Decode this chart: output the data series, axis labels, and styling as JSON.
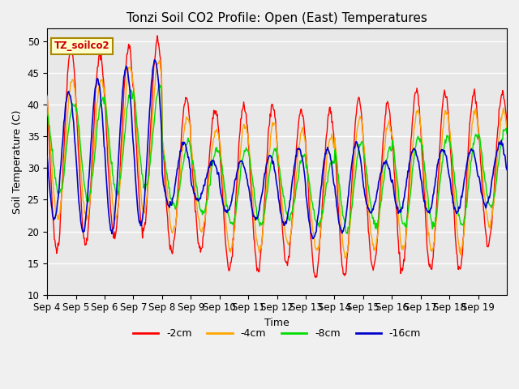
{
  "title": "Tonzi Soil CO2 Profile: Open (East) Temperatures",
  "xlabel": "Time",
  "ylabel": "Soil Temperature (C)",
  "ylim": [
    10,
    52
  ],
  "background_color": "#e8e8e8",
  "legend_label": "TZ_soilco2",
  "series": {
    "-2cm": {
      "color": "#ff0000",
      "label": "-2cm"
    },
    "-4cm": {
      "color": "#ffa500",
      "label": "-4cm"
    },
    "-8cm": {
      "color": "#00dd00",
      "label": "-8cm"
    },
    "-16cm": {
      "color": "#0000cc",
      "label": "-16cm"
    }
  },
  "x_tick_labels": [
    "Sep 4",
    "Sep 5",
    "Sep 6",
    "Sep 7",
    "Sep 8",
    "Sep 9",
    "Sep 10",
    "Sep 11",
    "Sep 12",
    "Sep 13",
    "Sep 14",
    "Sep 15",
    "Sep 16",
    "Sep 17",
    "Sep 18",
    "Sep 19"
  ],
  "yticks": [
    10,
    15,
    20,
    25,
    30,
    35,
    40,
    45,
    50
  ],
  "n_days": 16,
  "pts_per_day": 48,
  "daily_mean_2cm": [
    33,
    33,
    34,
    35,
    29,
    28,
    27,
    27,
    27,
    26,
    27,
    27,
    28,
    28,
    28,
    30
  ],
  "daily_amp_2cm": [
    16,
    15,
    15,
    15,
    12,
    11,
    13,
    13,
    12,
    13,
    14,
    13,
    14,
    14,
    14,
    12
  ],
  "daily_mean_4cm": [
    33,
    33,
    34,
    35,
    29,
    28,
    27,
    27,
    27,
    26,
    27,
    27,
    28,
    28,
    28,
    30
  ],
  "daily_amp_4cm": [
    11,
    11,
    12,
    12,
    9,
    8,
    10,
    10,
    9,
    9,
    11,
    10,
    11,
    11,
    11,
    9
  ],
  "daily_mean_8cm": [
    33,
    33,
    34,
    35,
    29,
    28,
    27,
    27,
    27,
    26,
    27,
    27,
    28,
    28,
    28,
    30
  ],
  "daily_amp_8cm": [
    7,
    8,
    8,
    8,
    5,
    5,
    6,
    6,
    5,
    5,
    7,
    6,
    7,
    7,
    7,
    6
  ],
  "daily_mean_16cm": [
    32,
    32,
    33,
    34,
    29,
    28,
    27,
    27,
    27,
    26,
    27,
    27,
    28,
    28,
    28,
    29
  ],
  "daily_amp_16cm": [
    10,
    12,
    13,
    13,
    5,
    3,
    4,
    5,
    6,
    7,
    7,
    4,
    5,
    5,
    5,
    5
  ],
  "phase_2cm": 14,
  "phase_4cm": 15,
  "phase_8cm": 16,
  "phase_16cm": 12
}
